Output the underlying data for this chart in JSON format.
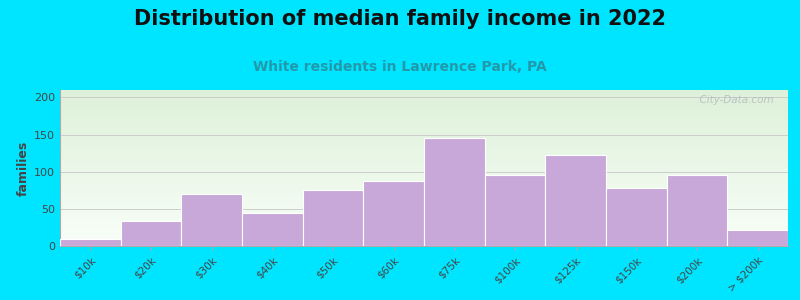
{
  "title": "Distribution of median family income in 2022",
  "subtitle": "White residents in Lawrence Park, PA",
  "categories": [
    "$10k",
    "$20k",
    "$30k",
    "$40k",
    "$50k",
    "$60k",
    "$75k",
    "$100k",
    "$125k",
    "$150k",
    "$200k",
    "> $200k"
  ],
  "values": [
    10,
    33,
    70,
    45,
    75,
    88,
    145,
    95,
    122,
    78,
    95,
    22
  ],
  "bar_color": "#c8a8d8",
  "bar_edge_color": "#ffffff",
  "ylabel": "families",
  "ylim": [
    0,
    210
  ],
  "yticks": [
    0,
    50,
    100,
    150,
    200
  ],
  "background_outer": "#00e5ff",
  "background_plot_top_color": "#ddf0d8",
  "background_plot_bottom_color": "#f8fef8",
  "grid_color": "#cccccc",
  "title_fontsize": 15,
  "subtitle_fontsize": 10,
  "subtitle_color": "#2299aa",
  "watermark": "  City-Data.com",
  "watermark_icon": "●"
}
